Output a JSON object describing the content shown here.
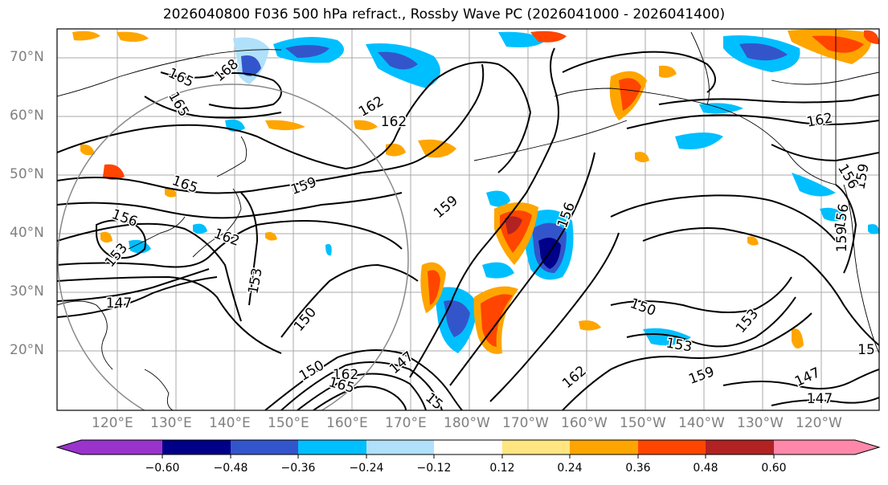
{
  "title": "2026040800 F036 500 hPa refract., Rossby Wave PC (2026041000 - 2026041400)",
  "lat_labels": [
    "70°N",
    "60°N",
    "50°N",
    "40°N",
    "30°N",
    "20°N"
  ],
  "lon_labels": [
    "120°E",
    "130°E",
    "140°E",
    "150°E",
    "160°E",
    "170°E",
    "180°W",
    "170°W",
    "160°W",
    "150°W",
    "140°W",
    "130°W",
    "120°W"
  ],
  "contour_labels": [
    "165",
    "168",
    "165",
    "162",
    "165",
    "162",
    "156",
    "159",
    "159",
    "156",
    "153",
    "162",
    "153",
    "150",
    "147",
    "150",
    "162",
    "165",
    "147",
    "159",
    "156",
    "150",
    "153",
    "159",
    "162",
    "153",
    "162",
    "159",
    "156",
    "15",
    "147",
    "147",
    "15"
  ],
  "colorbar": {
    "tick_labels": [
      "−0.60",
      "−0.48",
      "−0.36",
      "−0.24",
      "−0.12",
      "0.12",
      "0.24",
      "0.36",
      "0.48",
      "0.60"
    ],
    "colors": [
      "#9933cc",
      "#000088",
      "#3355cc",
      "#00bfff",
      "#b0e0fa",
      "#ffffff",
      "#ffe680",
      "#ffa500",
      "#ff4500",
      "#b22222",
      "#ff88aa"
    ]
  }
}
